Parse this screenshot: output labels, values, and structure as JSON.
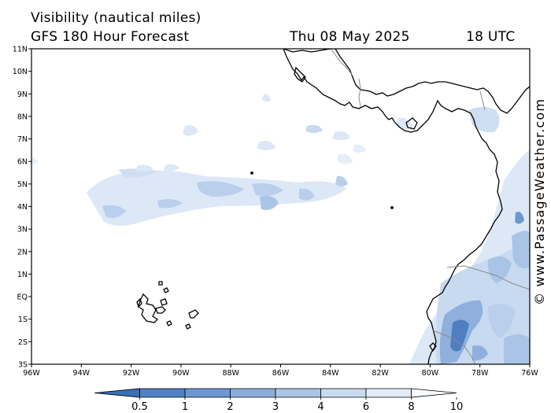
{
  "header": {
    "variable": "Visibility (nautical miles)",
    "model": "GFS 180 Hour Forecast",
    "date": "Thu 08 May 2025",
    "time": "18 UTC"
  },
  "credit": "© www.PassageWeather.com",
  "axes": {
    "x_labels": [
      "96W",
      "94W",
      "92W",
      "90W",
      "88W",
      "86W",
      "84W",
      "82W",
      "80W",
      "78W",
      "76W"
    ],
    "y_labels": [
      "11N",
      "10N",
      "9N",
      "8N",
      "7N",
      "6N",
      "5N",
      "4N",
      "3N",
      "2N",
      "1N",
      "EQ",
      "1S",
      "2S",
      "3S"
    ]
  },
  "colorbar": {
    "labels": [
      "0.5",
      "1",
      "2",
      "3",
      "4",
      "6",
      "8",
      "10"
    ],
    "colors": [
      "#3a70b8",
      "#4f82c4",
      "#6b98d0",
      "#8aaedb",
      "#a9c4e6",
      "#c8daf0",
      "#e2ecf7",
      "#f7fafd"
    ]
  },
  "colors": {
    "land_outline": "#000000",
    "border": "#8c8c8c",
    "fog_light": "#dde8f6",
    "fog_mid": "#b9cfec",
    "fog_dark": "#8fb0dd",
    "fog_darkest": "#4f7fc2"
  }
}
